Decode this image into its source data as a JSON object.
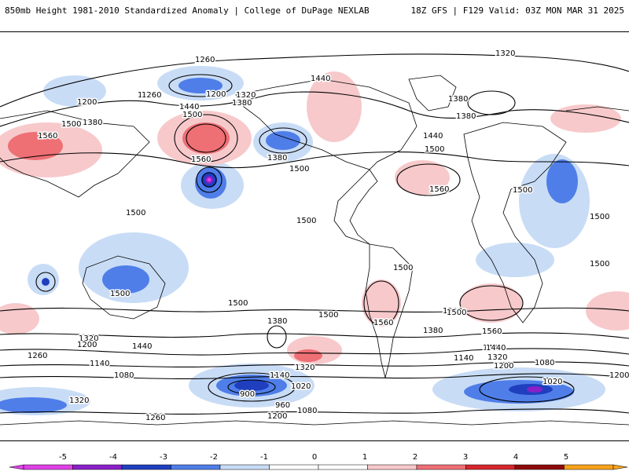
{
  "header": {
    "title_left": "850mb Height 1981-2010 Standardized Anomaly | College of DuPage NEXLAB",
    "title_right": "18Z GFS | F129 Valid: 03Z MON MAR 31 2025"
  },
  "colors": {
    "neg5": "#e040e8",
    "neg4": "#8a20c8",
    "neg3": "#1f3fbf",
    "neg2": "#4f7ee8",
    "neg1": "#c8dcf6",
    "zero": "#ffffff",
    "pos1": "#f7c9cb",
    "pos2": "#ee6f74",
    "pos3": "#d6262c",
    "pos4": "#8e0a0a",
    "pos5": "#f7a21a",
    "contour": "#000000",
    "land": "#000000"
  },
  "colorbar": {
    "ticks": [
      "-5",
      "-4",
      "-3",
      "-2",
      "-1",
      "0",
      "1",
      "2",
      "3",
      "4",
      "5"
    ]
  },
  "contour_labels": [
    "1260",
    "1200",
    "1260",
    "1320",
    "1380",
    "1440",
    "1500",
    "1560",
    "1500",
    "1380",
    "1200",
    "1260",
    "1320",
    "1380",
    "1440",
    "1500",
    "1560",
    "1500",
    "1380",
    "1440",
    "1500",
    "1560",
    "1500",
    "1500",
    "1500",
    "1500",
    "1500",
    "1500",
    "1500",
    "1560",
    "1500",
    "1560",
    "1380",
    "1440",
    "1320",
    "1200",
    "1260",
    "1140",
    "1080",
    "1020",
    "960",
    "900",
    "1140",
    "1080",
    "1200",
    "1260",
    "1320",
    "1380",
    "1440",
    "1500",
    "1500",
    "1560",
    "1380",
    "1440",
    "1320",
    "1200",
    "1140",
    "1080",
    "1020",
    "1200",
    "1320"
  ]
}
